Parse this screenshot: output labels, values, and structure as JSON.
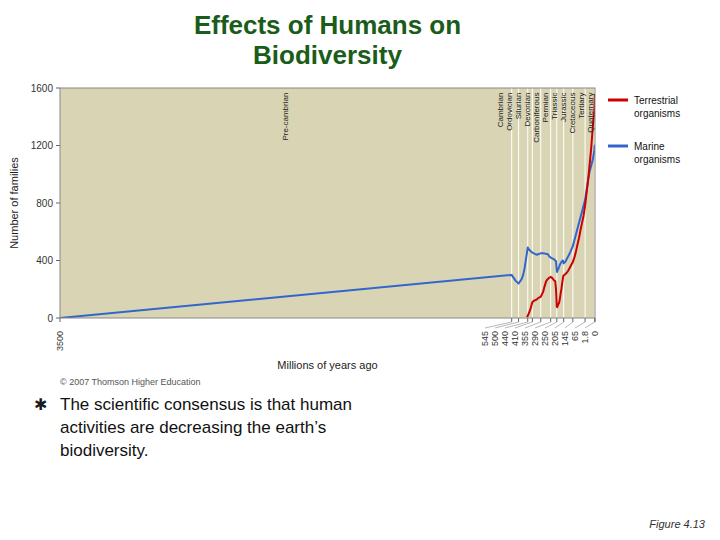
{
  "chart_data": {
    "type": "line",
    "title": "Effects of Humans on\nBiodiversity",
    "xlabel": "Millions of years ago",
    "ylabel": "Number of families",
    "xlim": [
      3500,
      0
    ],
    "ylim": [
      0,
      1600
    ],
    "xticks": [
      3500,
      545,
      500,
      440,
      410,
      355,
      290,
      250,
      205,
      145,
      65,
      1.8,
      0
    ],
    "yticks": [
      0,
      400,
      800,
      1200,
      1600
    ],
    "legend": "right",
    "periods": [
      "Pre-cambrian",
      "Cambrian",
      "Ordovician",
      "Silurian",
      "Devonian",
      "Carboniferous",
      "Permian",
      "Triassic",
      "Jurassic",
      "Cretaceous",
      "Tertiary",
      "Quaternary"
    ],
    "annotations": {
      "copyright": "© 2007 Thomson Higher Education",
      "bullet_symbol": "✱",
      "bullet_text": [
        "The scientific consensus is that human",
        "activities are decreasing the earth’s",
        "biodiversity."
      ],
      "figure_note": "Figure 4.13"
    },
    "series": [
      {
        "name": "Terrestrial\norganisms",
        "color": "#cc0000",
        "x": [
          445,
          440,
          430,
          420,
          415,
          410,
          400,
          390,
          380,
          370,
          360,
          355,
          340,
          330,
          320,
          310,
          300,
          295,
          290,
          285,
          280,
          275,
          270,
          260,
          255,
          252,
          250,
          248,
          246,
          245,
          242,
          240,
          235,
          230,
          225,
          220,
          215,
          210,
          208,
          205,
          195,
          185,
          175,
          165,
          155,
          145,
          135,
          125,
          115,
          105,
          95,
          85,
          75,
          65,
          55,
          45,
          35,
          25,
          15,
          5,
          1.8,
          0
        ],
        "values": [
          5,
          15,
          40,
          70,
          90,
          110,
          120,
          125,
          130,
          140,
          145,
          148,
          180,
          220,
          255,
          270,
          280,
          283,
          285,
          283,
          278,
          272,
          265,
          255,
          200,
          130,
          80,
          75,
          78,
          82,
          90,
          95,
          105,
          130,
          170,
          200,
          240,
          275,
          290,
          295,
          305,
          315,
          330,
          350,
          370,
          390,
          420,
          460,
          510,
          555,
          610,
          660,
          710,
          780,
          870,
          960,
          1070,
          1180,
          1320,
          1430,
          1530,
          1560
        ]
      },
      {
        "name": "Marine\norganisms",
        "color": "#3366cc",
        "x": [
          3500,
          545,
          520,
          500,
          480,
          470,
          460,
          450,
          440,
          435,
          430,
          420,
          415,
          410,
          400,
          390,
          380,
          370,
          360,
          355,
          340,
          330,
          320,
          310,
          300,
          290,
          280,
          270,
          265,
          260,
          255,
          250,
          248,
          245,
          240,
          235,
          230,
          225,
          220,
          215,
          210,
          205,
          195,
          185,
          175,
          165,
          155,
          145,
          135,
          125,
          115,
          105,
          95,
          85,
          75,
          65,
          55,
          45,
          35,
          25,
          15,
          5,
          1.8,
          0
        ],
        "values": [
          0,
          300,
          260,
          240,
          270,
          300,
          350,
          420,
          490,
          480,
          475,
          465,
          460,
          455,
          450,
          445,
          440,
          445,
          448,
          450,
          450,
          448,
          446,
          445,
          430,
          420,
          415,
          410,
          405,
          400,
          395,
          330,
          320,
          330,
          340,
          355,
          370,
          380,
          390,
          395,
          400,
          380,
          390,
          410,
          430,
          450,
          475,
          500,
          540,
          580,
          620,
          660,
          700,
          740,
          780,
          820,
          890,
          960,
          1020,
          1060,
          1100,
          1160,
          1200,
          1200
        ]
      }
    ]
  }
}
